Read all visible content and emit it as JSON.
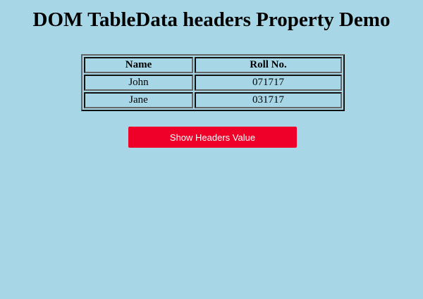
{
  "page": {
    "title": "DOM TableData headers Property Demo"
  },
  "table": {
    "headers": [
      "Name",
      "Roll No."
    ],
    "rows": [
      [
        "John",
        "071717"
      ],
      [
        "Jane",
        "031717"
      ]
    ]
  },
  "button": {
    "label": "Show Headers Value",
    "color": "#ee0028"
  },
  "background": "#a7d7e6"
}
